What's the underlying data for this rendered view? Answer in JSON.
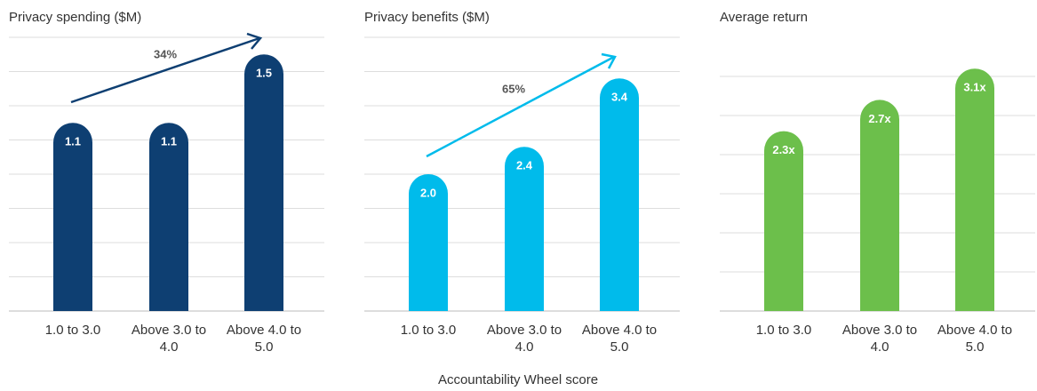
{
  "chart_data": [
    {
      "type": "bar",
      "title": "Privacy spending ($M)",
      "categories": [
        "1.0 to 3.0",
        "Above 3.0 to 4.0",
        "Above 4.0 to 5.0"
      ],
      "values": [
        1.1,
        1.1,
        1.5
      ],
      "value_labels": [
        "1.1",
        "1.1",
        "1.5"
      ],
      "color": "#0e3f72",
      "ylim": [
        0,
        1.6
      ],
      "yticks": [
        0,
        0.2,
        0.4,
        0.6,
        0.8,
        1,
        1.2,
        1.4,
        1.6
      ],
      "grid": true,
      "annotation": "34%"
    },
    {
      "type": "bar",
      "title": "Privacy benefits ($M)",
      "categories": [
        "1.0 to 3.0",
        "Above 3.0 to 4.0",
        "Above 4.0 to 5.0"
      ],
      "values": [
        2.0,
        2.4,
        3.4
      ],
      "value_labels": [
        "2.0",
        "2.4",
        "3.4"
      ],
      "color": "#00bbeb",
      "ylim": [
        0,
        4
      ],
      "yticks": [
        0,
        0.5,
        1,
        1.5,
        2,
        2.5,
        3,
        3.5,
        4
      ],
      "grid": true,
      "annotation": "65%",
      "xlabel": "Accountability Wheel score"
    },
    {
      "type": "bar",
      "title": "Average return",
      "categories": [
        "1.0 to 3.0",
        "Above 3.0 to 4.0",
        "Above 4.0 to 5.0"
      ],
      "values": [
        2.3,
        2.7,
        3.1
      ],
      "value_labels": [
        "2.3x",
        "2.7x",
        "3.1x"
      ],
      "color": "#6cbf4b",
      "ylim": [
        0,
        3
      ],
      "yticks": [
        0,
        0.5,
        1,
        1.5,
        2,
        2.5,
        3
      ],
      "grid": true
    }
  ]
}
